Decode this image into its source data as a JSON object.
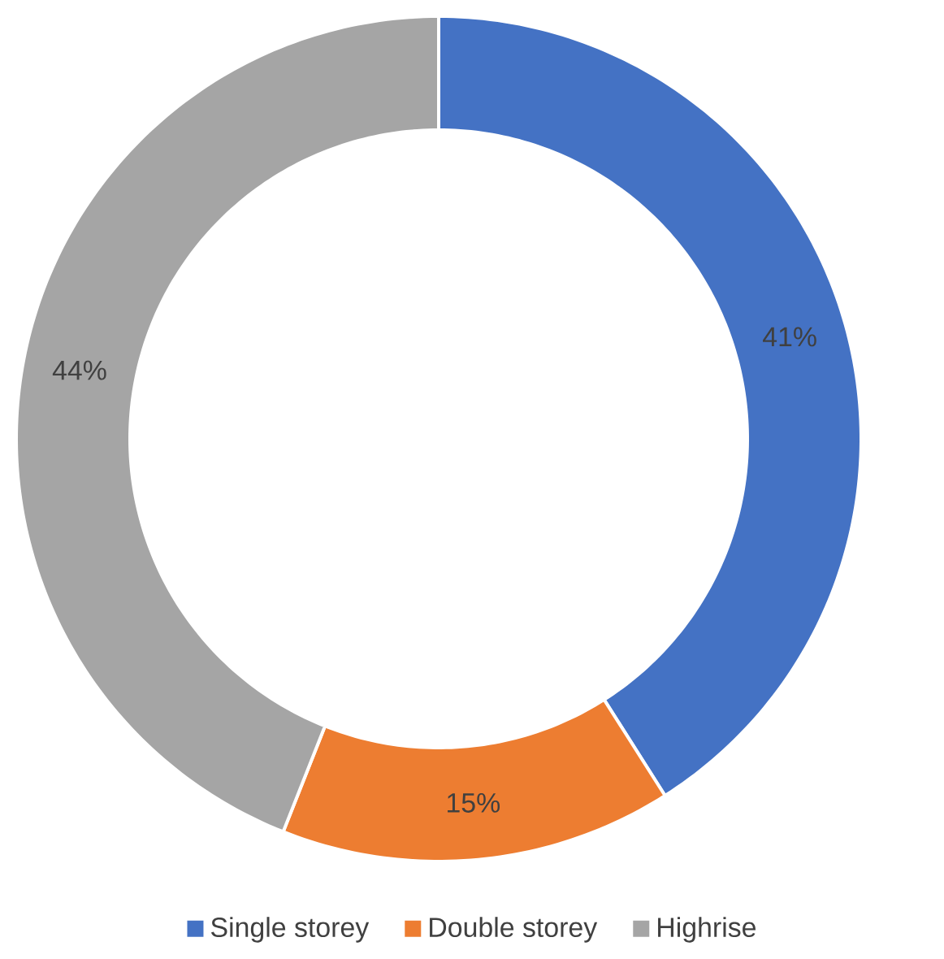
{
  "chart_data": {
    "type": "donut",
    "categories": [
      "Single storey",
      "Double storey",
      "Highrise"
    ],
    "values": [
      41,
      15,
      44
    ],
    "colors": [
      "#4472c4",
      "#ed7d31",
      "#a5a5a5"
    ],
    "value_labels": [
      "41%",
      "15%",
      "44%"
    ],
    "legend": "bottom"
  }
}
